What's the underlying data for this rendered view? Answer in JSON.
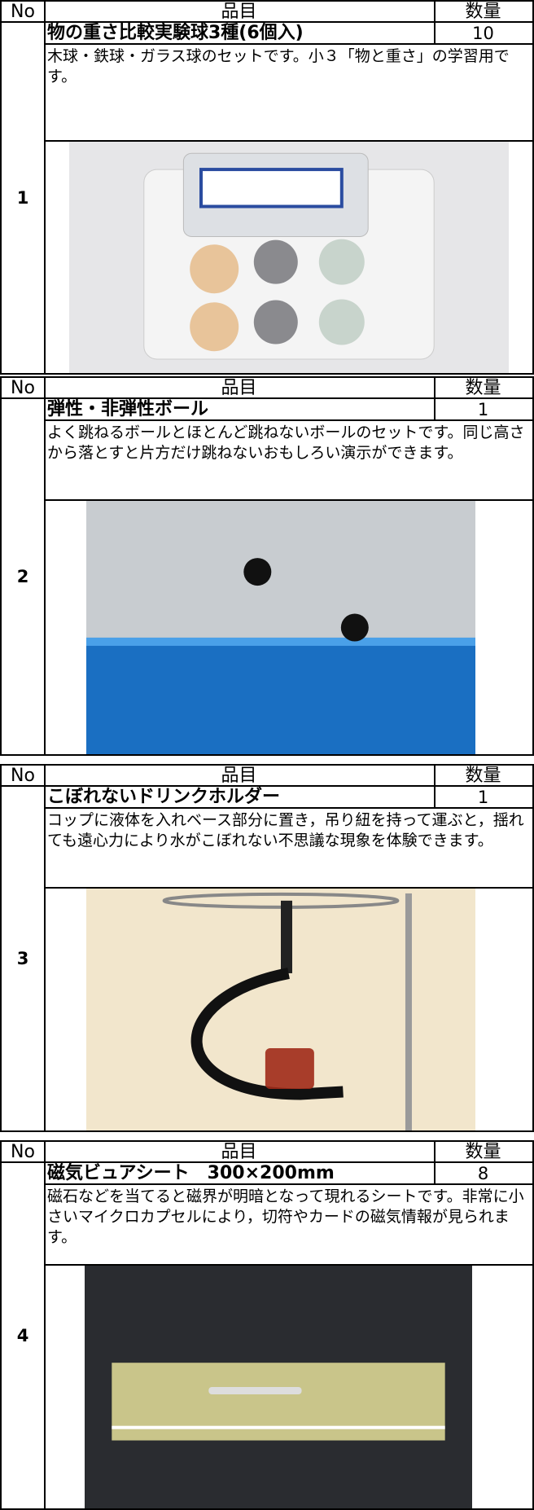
{
  "header": {
    "no": "No",
    "item": "品目",
    "quantity": "数量"
  },
  "items": [
    {
      "no": "1",
      "name": "物の重さ比較実験球3種(6個入)",
      "quantity": "10",
      "description": "木球・鉄球・ガラス球のセットです。小３「物と重さ」の学習用です。"
    },
    {
      "no": "2",
      "name": "弾性・非弾性ボール",
      "quantity": "1",
      "description": "よく跳ねるボールとほとんど跳ねないボールのセットです。同じ高さから落とすと片方だけ跳ねないおもしろい演示ができます。"
    },
    {
      "no": "3",
      "name": "こぼれないドリンクホルダー",
      "quantity": "1",
      "description": "コップに液体を入れベース部分に置き，吊り紐を持って運ぶと，揺れても遠心力により水がこぼれない不思議な現象を体験できます。"
    },
    {
      "no": "4",
      "name": "磁気ビュアシート　300×200mm",
      "quantity": "8",
      "description": "磁石などを当てると磁界が明暗となって現れるシートです。非常に小さいマイクロカプセルにより，切符やカードの磁気情報が見られます。"
    }
  ]
}
